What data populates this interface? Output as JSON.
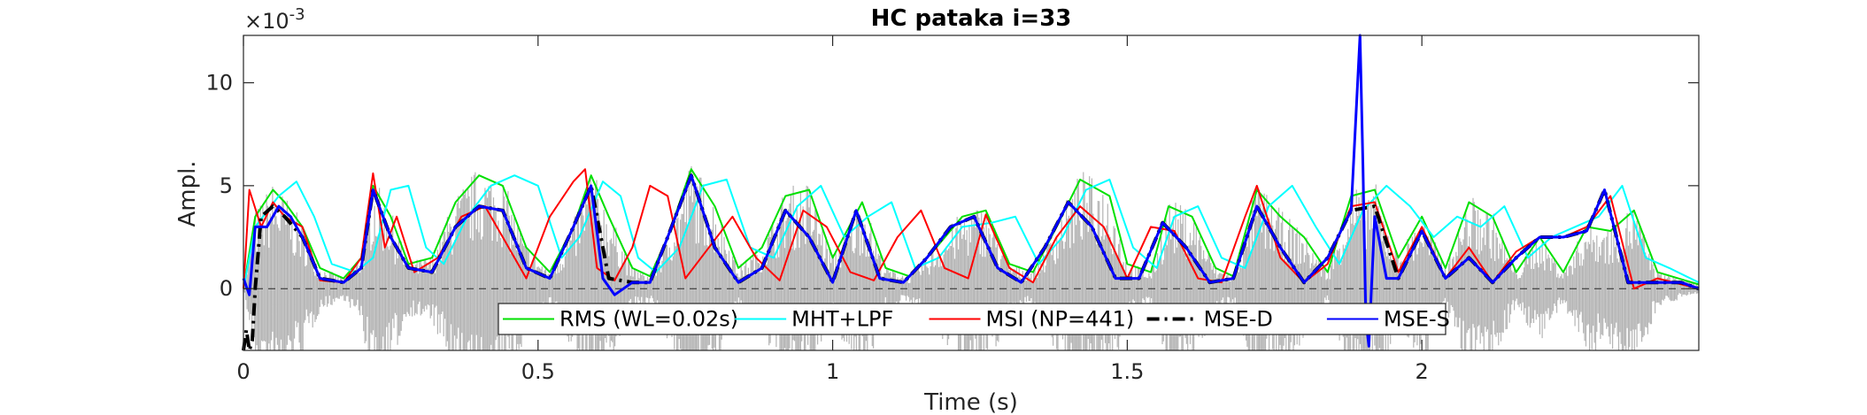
{
  "chart_data": {
    "type": "line",
    "title": "HC pataka i=33",
    "xlabel": "Time (s)",
    "ylabel": "Ampl.",
    "y_exponent_label": "×10",
    "y_exponent_power": "-3",
    "xlim": [
      0,
      2.47
    ],
    "ylim": [
      -3,
      12.3
    ],
    "x_ticks": [
      0,
      0.5,
      1,
      1.5,
      2
    ],
    "x_tick_labels": [
      "0",
      "0.5",
      "1",
      "1.5",
      "2"
    ],
    "y_ticks": [
      0,
      5,
      10
    ],
    "y_tick_labels": [
      "0",
      "5",
      "10"
    ],
    "grid": false,
    "legend_position": "bottom-center",
    "signal_color": "#b4b4b4",
    "zero_line_style": "dashed",
    "series": [
      {
        "name": "RMS (WL=0.02s)",
        "color": "#00e000",
        "style": "solid",
        "x": [
          0.0,
          0.02,
          0.05,
          0.07,
          0.1,
          0.13,
          0.17,
          0.2,
          0.22,
          0.25,
          0.28,
          0.32,
          0.36,
          0.4,
          0.44,
          0.48,
          0.52,
          0.56,
          0.59,
          0.62,
          0.66,
          0.69,
          0.72,
          0.76,
          0.8,
          0.84,
          0.88,
          0.92,
          0.96,
          1.0,
          1.05,
          1.09,
          1.13,
          1.17,
          1.22,
          1.26,
          1.3,
          1.34,
          1.38,
          1.42,
          1.47,
          1.5,
          1.54,
          1.57,
          1.61,
          1.65,
          1.68,
          1.72,
          1.76,
          1.8,
          1.84,
          1.88,
          1.92,
          1.96,
          2.0,
          2.04,
          2.08,
          2.12,
          2.16,
          2.2,
          2.24,
          2.28,
          2.32,
          2.36,
          2.4,
          2.47
        ],
        "y": [
          0.0,
          3.5,
          4.8,
          4.2,
          3.0,
          1.0,
          0.5,
          1.5,
          5.0,
          3.5,
          1.2,
          1.5,
          4.2,
          5.5,
          5.0,
          2.0,
          0.8,
          3.0,
          5.5,
          3.5,
          1.0,
          0.6,
          2.5,
          5.8,
          4.0,
          1.0,
          2.0,
          4.5,
          4.8,
          1.5,
          4.2,
          1.0,
          0.6,
          1.8,
          3.5,
          3.8,
          1.2,
          0.8,
          3.0,
          5.3,
          4.5,
          1.2,
          0.8,
          4.0,
          3.5,
          1.0,
          0.6,
          4.8,
          3.5,
          2.5,
          0.8,
          4.5,
          4.8,
          1.5,
          3.5,
          1.0,
          4.2,
          3.5,
          0.8,
          2.5,
          0.8,
          3.0,
          2.8,
          3.8,
          0.8,
          0.2
        ]
      },
      {
        "name": "MHT+LPF",
        "color": "#00ffff",
        "style": "solid",
        "x": [
          0.0,
          0.02,
          0.06,
          0.09,
          0.12,
          0.15,
          0.19,
          0.22,
          0.25,
          0.28,
          0.31,
          0.34,
          0.38,
          0.42,
          0.46,
          0.5,
          0.54,
          0.57,
          0.61,
          0.64,
          0.67,
          0.7,
          0.74,
          0.78,
          0.82,
          0.86,
          0.9,
          0.94,
          0.98,
          1.02,
          1.06,
          1.1,
          1.14,
          1.18,
          1.22,
          1.27,
          1.31,
          1.35,
          1.39,
          1.43,
          1.47,
          1.51,
          1.55,
          1.58,
          1.62,
          1.66,
          1.7,
          1.74,
          1.78,
          1.82,
          1.86,
          1.9,
          1.94,
          1.98,
          2.02,
          2.06,
          2.1,
          2.14,
          2.18,
          2.22,
          2.26,
          2.3,
          2.34,
          2.38,
          2.42,
          2.47
        ],
        "y": [
          0.0,
          3.0,
          4.5,
          5.2,
          3.5,
          1.2,
          0.8,
          1.5,
          4.8,
          5.0,
          2.0,
          1.2,
          3.5,
          5.0,
          5.5,
          5.0,
          1.5,
          2.5,
          5.2,
          4.5,
          1.5,
          0.8,
          2.0,
          5.0,
          5.3,
          2.0,
          1.5,
          4.0,
          5.0,
          2.5,
          3.5,
          4.2,
          1.0,
          1.5,
          3.0,
          3.2,
          3.5,
          1.2,
          2.5,
          4.8,
          5.3,
          2.0,
          1.0,
          3.5,
          4.0,
          1.5,
          1.0,
          4.0,
          5.0,
          3.0,
          1.2,
          3.8,
          5.0,
          4.0,
          2.5,
          3.5,
          3.0,
          4.0,
          1.5,
          2.5,
          3.0,
          3.5,
          5.0,
          1.5,
          1.0,
          0.3
        ]
      },
      {
        "name": "MSI (NP=441)",
        "color": "#ff0000",
        "style": "solid",
        "x": [
          0.0,
          0.01,
          0.03,
          0.05,
          0.07,
          0.1,
          0.13,
          0.17,
          0.2,
          0.22,
          0.24,
          0.26,
          0.29,
          0.33,
          0.37,
          0.41,
          0.44,
          0.48,
          0.52,
          0.56,
          0.58,
          0.6,
          0.63,
          0.66,
          0.69,
          0.72,
          0.75,
          0.79,
          0.83,
          0.87,
          0.91,
          0.95,
          0.99,
          1.03,
          1.07,
          1.11,
          1.15,
          1.19,
          1.23,
          1.26,
          1.3,
          1.34,
          1.38,
          1.42,
          1.46,
          1.5,
          1.54,
          1.58,
          1.62,
          1.66,
          1.7,
          1.72,
          1.76,
          1.8,
          1.84,
          1.88,
          1.92,
          1.96,
          2.0,
          2.04,
          2.08,
          2.12,
          2.16,
          2.2,
          2.24,
          2.28,
          2.32,
          2.36,
          2.4,
          2.47
        ],
        "y": [
          0.0,
          4.8,
          3.0,
          4.2,
          3.5,
          3.0,
          0.4,
          0.3,
          1.5,
          5.6,
          2.0,
          3.5,
          0.8,
          1.5,
          3.5,
          4.0,
          2.5,
          0.5,
          3.5,
          5.2,
          5.8,
          1.0,
          0.4,
          2.0,
          5.0,
          4.5,
          0.5,
          2.0,
          3.5,
          1.5,
          0.4,
          3.8,
          3.0,
          0.8,
          0.4,
          2.5,
          3.8,
          1.0,
          0.5,
          3.6,
          1.0,
          0.3,
          2.5,
          4.0,
          3.0,
          0.5,
          3.0,
          2.8,
          0.5,
          0.3,
          3.5,
          5.0,
          1.5,
          0.3,
          1.2,
          4.0,
          4.2,
          0.8,
          3.0,
          0.5,
          2.0,
          0.3,
          1.8,
          2.5,
          2.5,
          3.0,
          4.5,
          0.0,
          0.5,
          0.0
        ]
      },
      {
        "name": "MSE-D",
        "color": "#000000",
        "style": "dashdot",
        "x": [
          0.0,
          0.005,
          0.01,
          0.015,
          0.02,
          0.03,
          0.05,
          0.07,
          0.1,
          0.13,
          0.17,
          0.2,
          0.22,
          0.25,
          0.28,
          0.32,
          0.36,
          0.4,
          0.44,
          0.48,
          0.52,
          0.56,
          0.59,
          0.62,
          0.66,
          0.69,
          0.72,
          0.76,
          0.8,
          0.84,
          0.88,
          0.92,
          0.96,
          1.0,
          1.04,
          1.08,
          1.12,
          1.16,
          1.2,
          1.24,
          1.28,
          1.32,
          1.36,
          1.4,
          1.44,
          1.48,
          1.52,
          1.56,
          1.6,
          1.64,
          1.68,
          1.72,
          1.76,
          1.8,
          1.84,
          1.88,
          1.92,
          1.96,
          2.0,
          2.04,
          2.08,
          2.12,
          2.16,
          2.2,
          2.24,
          2.28,
          2.31,
          2.35,
          2.39,
          2.44,
          2.47
        ],
        "y": [
          -3.0,
          -2.0,
          -3.0,
          -2.5,
          0.0,
          3.5,
          4.0,
          3.5,
          2.5,
          0.5,
          0.3,
          1.0,
          4.8,
          2.5,
          1.0,
          0.8,
          3.0,
          4.0,
          3.8,
          1.0,
          0.5,
          3.0,
          5.0,
          0.5,
          0.3,
          0.3,
          2.5,
          5.5,
          2.0,
          0.3,
          1.0,
          3.8,
          2.5,
          0.3,
          3.8,
          0.5,
          0.3,
          1.5,
          3.0,
          3.5,
          1.0,
          0.3,
          2.0,
          4.2,
          3.0,
          0.5,
          0.5,
          3.2,
          2.0,
          0.3,
          0.5,
          4.0,
          2.0,
          0.3,
          1.5,
          3.8,
          4.0,
          0.5,
          2.8,
          0.5,
          1.5,
          0.3,
          1.5,
          2.5,
          2.5,
          2.8,
          4.8,
          0.3,
          0.3,
          0.3,
          0.0
        ]
      },
      {
        "name": "MSE-S",
        "color": "#0000ff",
        "style": "solid",
        "x": [
          0.0,
          0.01,
          0.02,
          0.04,
          0.06,
          0.08,
          0.1,
          0.13,
          0.17,
          0.2,
          0.22,
          0.25,
          0.28,
          0.32,
          0.36,
          0.4,
          0.44,
          0.48,
          0.52,
          0.56,
          0.59,
          0.61,
          0.63,
          0.66,
          0.69,
          0.72,
          0.76,
          0.8,
          0.84,
          0.88,
          0.92,
          0.96,
          1.0,
          1.04,
          1.08,
          1.12,
          1.16,
          1.2,
          1.24,
          1.28,
          1.32,
          1.36,
          1.4,
          1.44,
          1.48,
          1.52,
          1.56,
          1.6,
          1.64,
          1.68,
          1.72,
          1.76,
          1.8,
          1.84,
          1.88,
          1.895,
          1.9,
          1.905,
          1.91,
          1.92,
          1.94,
          1.96,
          2.0,
          2.04,
          2.08,
          2.12,
          2.16,
          2.2,
          2.24,
          2.28,
          2.31,
          2.35,
          2.39,
          2.44,
          2.47
        ],
        "y": [
          0.5,
          -0.3,
          3.0,
          3.0,
          4.0,
          3.5,
          2.5,
          0.5,
          0.3,
          1.0,
          4.8,
          2.5,
          1.0,
          0.8,
          3.0,
          4.0,
          3.8,
          1.0,
          0.5,
          3.0,
          5.0,
          0.5,
          -0.3,
          0.3,
          0.3,
          2.5,
          5.5,
          2.0,
          0.3,
          1.0,
          3.8,
          2.5,
          0.3,
          3.8,
          0.5,
          0.3,
          1.5,
          3.0,
          3.5,
          1.0,
          0.3,
          2.0,
          4.2,
          3.0,
          0.5,
          0.5,
          3.2,
          2.0,
          0.3,
          0.5,
          4.0,
          2.0,
          0.3,
          1.5,
          3.8,
          12.3,
          6.0,
          -1.5,
          -2.8,
          3.5,
          0.5,
          0.5,
          2.8,
          0.5,
          1.5,
          0.3,
          1.5,
          2.5,
          2.5,
          2.8,
          4.8,
          0.3,
          0.3,
          0.3,
          0.0
        ]
      }
    ]
  }
}
